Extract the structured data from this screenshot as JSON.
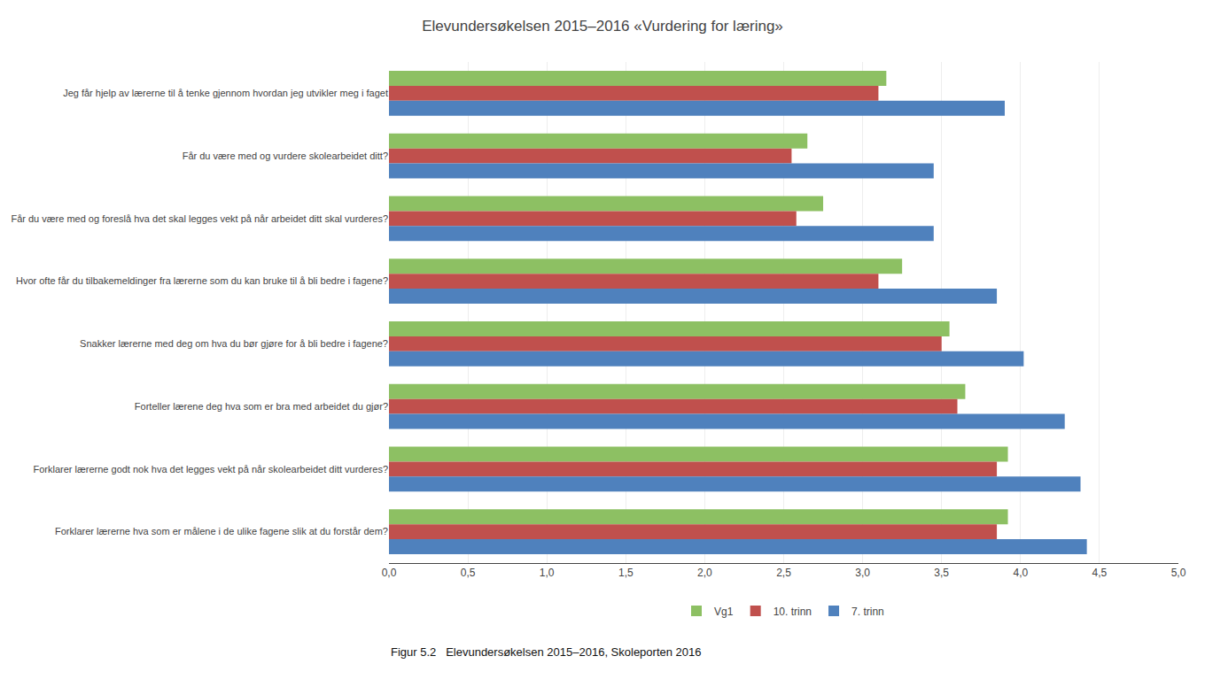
{
  "chart_data": {
    "type": "bar",
    "orientation": "horizontal",
    "title": "Elevundersøkelsen 2015–2016 «Vurdering for læring»",
    "categories": [
      "Jeg får hjelp av lærerne til å tenke gjennom hvordan jeg utvikler meg i faget",
      "Får du være med og vurdere skolearbeidet ditt?",
      "Får du være med og foreslå hva det skal legges vekt på når arbeidet ditt skal vurderes?",
      "Hvor ofte får du tilbakemeldinger fra lærerne som du kan bruke til å bli bedre i fagene?",
      "Snakker lærerne med deg om hva du bør gjøre for å bli bedre i fagene?",
      "Forteller lærene deg hva som er bra med arbeidet du gjør?",
      "Forklarer lærerne godt nok hva det legges vekt på når skolearbeidet ditt vurderes?",
      "Forklarer lærerne hva som er målene i de ulike fagene slik at du forstår dem?"
    ],
    "series": [
      {
        "name": "Vg1",
        "color": "#8DC063",
        "values": [
          3.15,
          2.65,
          2.75,
          3.25,
          3.55,
          3.65,
          3.92,
          3.92
        ]
      },
      {
        "name": "10. trinn",
        "color": "#C0504D",
        "values": [
          3.1,
          2.55,
          2.58,
          3.1,
          3.5,
          3.6,
          3.85,
          3.85
        ]
      },
      {
        "name": "7. trinn",
        "color": "#4F81BD",
        "values": [
          3.9,
          3.45,
          3.45,
          3.85,
          4.02,
          4.28,
          4.38,
          4.42
        ]
      }
    ],
    "xlim": [
      0.0,
      5.0
    ],
    "xticks": [
      {
        "value": 0.0,
        "label": "0,0"
      },
      {
        "value": 0.5,
        "label": "0,5"
      },
      {
        "value": 1.0,
        "label": "1,0"
      },
      {
        "value": 1.5,
        "label": "1,5"
      },
      {
        "value": 2.0,
        "label": "2,0"
      },
      {
        "value": 2.5,
        "label": "2,5"
      },
      {
        "value": 3.0,
        "label": "3,0"
      },
      {
        "value": 3.5,
        "label": "3,5"
      },
      {
        "value": 4.0,
        "label": "4,0"
      },
      {
        "value": 4.5,
        "label": "4,5"
      },
      {
        "value": 5.0,
        "label": "5,0"
      }
    ],
    "grid": true,
    "legend": "bottom",
    "annotations": [
      "Figur 5.2   Elevundersøkelsen 2015–2016, Skoleporten 2016"
    ]
  }
}
